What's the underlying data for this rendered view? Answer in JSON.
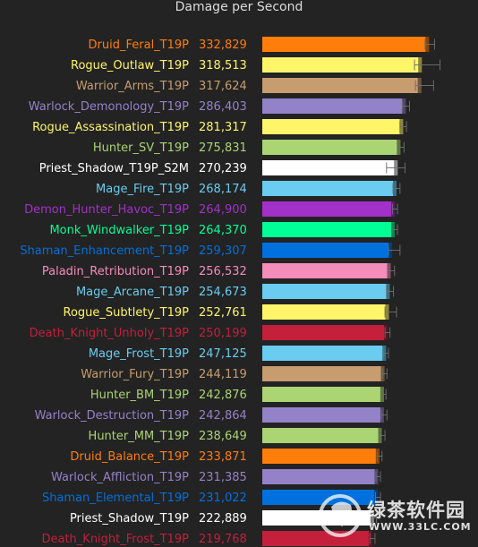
{
  "chart_data": {
    "type": "bar",
    "orientation": "horizontal",
    "title": "Damage per Second",
    "grid": false,
    "rows": [
      {
        "name": "Druid_Feral_T19P",
        "value": 332829,
        "err": [
          325000,
          344000
        ],
        "color": "#FF7D0A"
      },
      {
        "name": "Rogue_Outlaw_T19P",
        "value": 318513,
        "err": [
          304000,
          355000
        ],
        "color": "#FFF569"
      },
      {
        "name": "Warrior_Arms_T19P",
        "value": 317624,
        "err": [
          306000,
          342000
        ],
        "color": "#C79C6E"
      },
      {
        "name": "Warlock_Demonology_T19P",
        "value": 286403,
        "err": [
          280000,
          294000
        ],
        "color": "#9482C9"
      },
      {
        "name": "Rogue_Assassination_T19P",
        "value": 281317,
        "err": [
          275000,
          288000
        ],
        "color": "#FFF569"
      },
      {
        "name": "Hunter_SV_T19P",
        "value": 275831,
        "err": [
          270000,
          283000
        ],
        "color": "#ABD473"
      },
      {
        "name": "Priest_Shadow_T19P_S2M",
        "value": 270239,
        "err": [
          248000,
          285000
        ],
        "color": "#FFFFFF"
      },
      {
        "name": "Mage_Fire_T19P",
        "value": 268174,
        "err": [
          261000,
          275000
        ],
        "color": "#69CCF0"
      },
      {
        "name": "Demon_Hunter_Havoc_T19P",
        "value": 264900,
        "err": [
          260000,
          270000
        ],
        "color": "#A330C9"
      },
      {
        "name": "Monk_Windwalker_T19P",
        "value": 264370,
        "err": [
          259000,
          270000
        ],
        "color": "#00FF96"
      },
      {
        "name": "Shaman_Enhancement_T19P",
        "value": 259307,
        "err": [
          252000,
          275000
        ],
        "color": "#0070DE"
      },
      {
        "name": "Paladin_Retribution_T19P",
        "value": 256532,
        "err": [
          250000,
          264000
        ],
        "color": "#F58CBA"
      },
      {
        "name": "Mage_Arcane_T19P",
        "value": 254673,
        "err": [
          248000,
          262000
        ],
        "color": "#69CCF0"
      },
      {
        "name": "Rogue_Subtlety_T19P",
        "value": 252761,
        "err": [
          245000,
          268000
        ],
        "color": "#FFF569"
      },
      {
        "name": "Death_Knight_Unholy_T19P",
        "value": 250199,
        "err": [
          245000,
          255000
        ],
        "color": "#C41F3B"
      },
      {
        "name": "Mage_Frost_T19P",
        "value": 247125,
        "err": [
          242000,
          252000
        ],
        "color": "#69CCF0"
      },
      {
        "name": "Warrior_Fury_T19P",
        "value": 244119,
        "err": [
          240000,
          249000
        ],
        "color": "#C79C6E"
      },
      {
        "name": "Hunter_BM_T19P",
        "value": 242876,
        "err": [
          239000,
          247000
        ],
        "color": "#ABD473"
      },
      {
        "name": "Warlock_Destruction_T19P",
        "value": 242864,
        "err": [
          238000,
          249000
        ],
        "color": "#9482C9"
      },
      {
        "name": "Hunter_MM_T19P",
        "value": 238649,
        "err": [
          233000,
          245000
        ],
        "color": "#ABD473"
      },
      {
        "name": "Druid_Balance_T19P",
        "value": 233871,
        "err": [
          229000,
          239000
        ],
        "color": "#FF7D0A"
      },
      {
        "name": "Warlock_Affliction_T19P",
        "value": 231385,
        "err": [
          227000,
          236000
        ],
        "color": "#9482C9"
      },
      {
        "name": "Shaman_Elemental_T19P",
        "value": 231022,
        "err": [
          226000,
          236000
        ],
        "color": "#0070DE"
      },
      {
        "name": "Priest_Shadow_T19P",
        "value": 222889,
        "err": [
          218000,
          228000
        ],
        "color": "#FFFFFF"
      },
      {
        "name": "Death_Knight_Frost_T19P",
        "value": 219768,
        "err": [
          215000,
          225000
        ],
        "color": "#C41F3B"
      }
    ],
    "display_values": [
      "332,829",
      "318,513",
      "317,624",
      "286,403",
      "281,317",
      "275,831",
      "270,239",
      "268,174",
      "264,900",
      "264,370",
      "259,307",
      "256,532",
      "254,673",
      "252,761",
      "250,199",
      "247,125",
      "244,119",
      "242,876",
      "242,864",
      "238,649",
      "233,871",
      "231,385",
      "231,022",
      "222,889",
      "219,768"
    ],
    "xlim": [
      0,
      370000
    ]
  },
  "watermark": {
    "text": "绿茶软件园",
    "url": "WWW.33LC.COM"
  }
}
